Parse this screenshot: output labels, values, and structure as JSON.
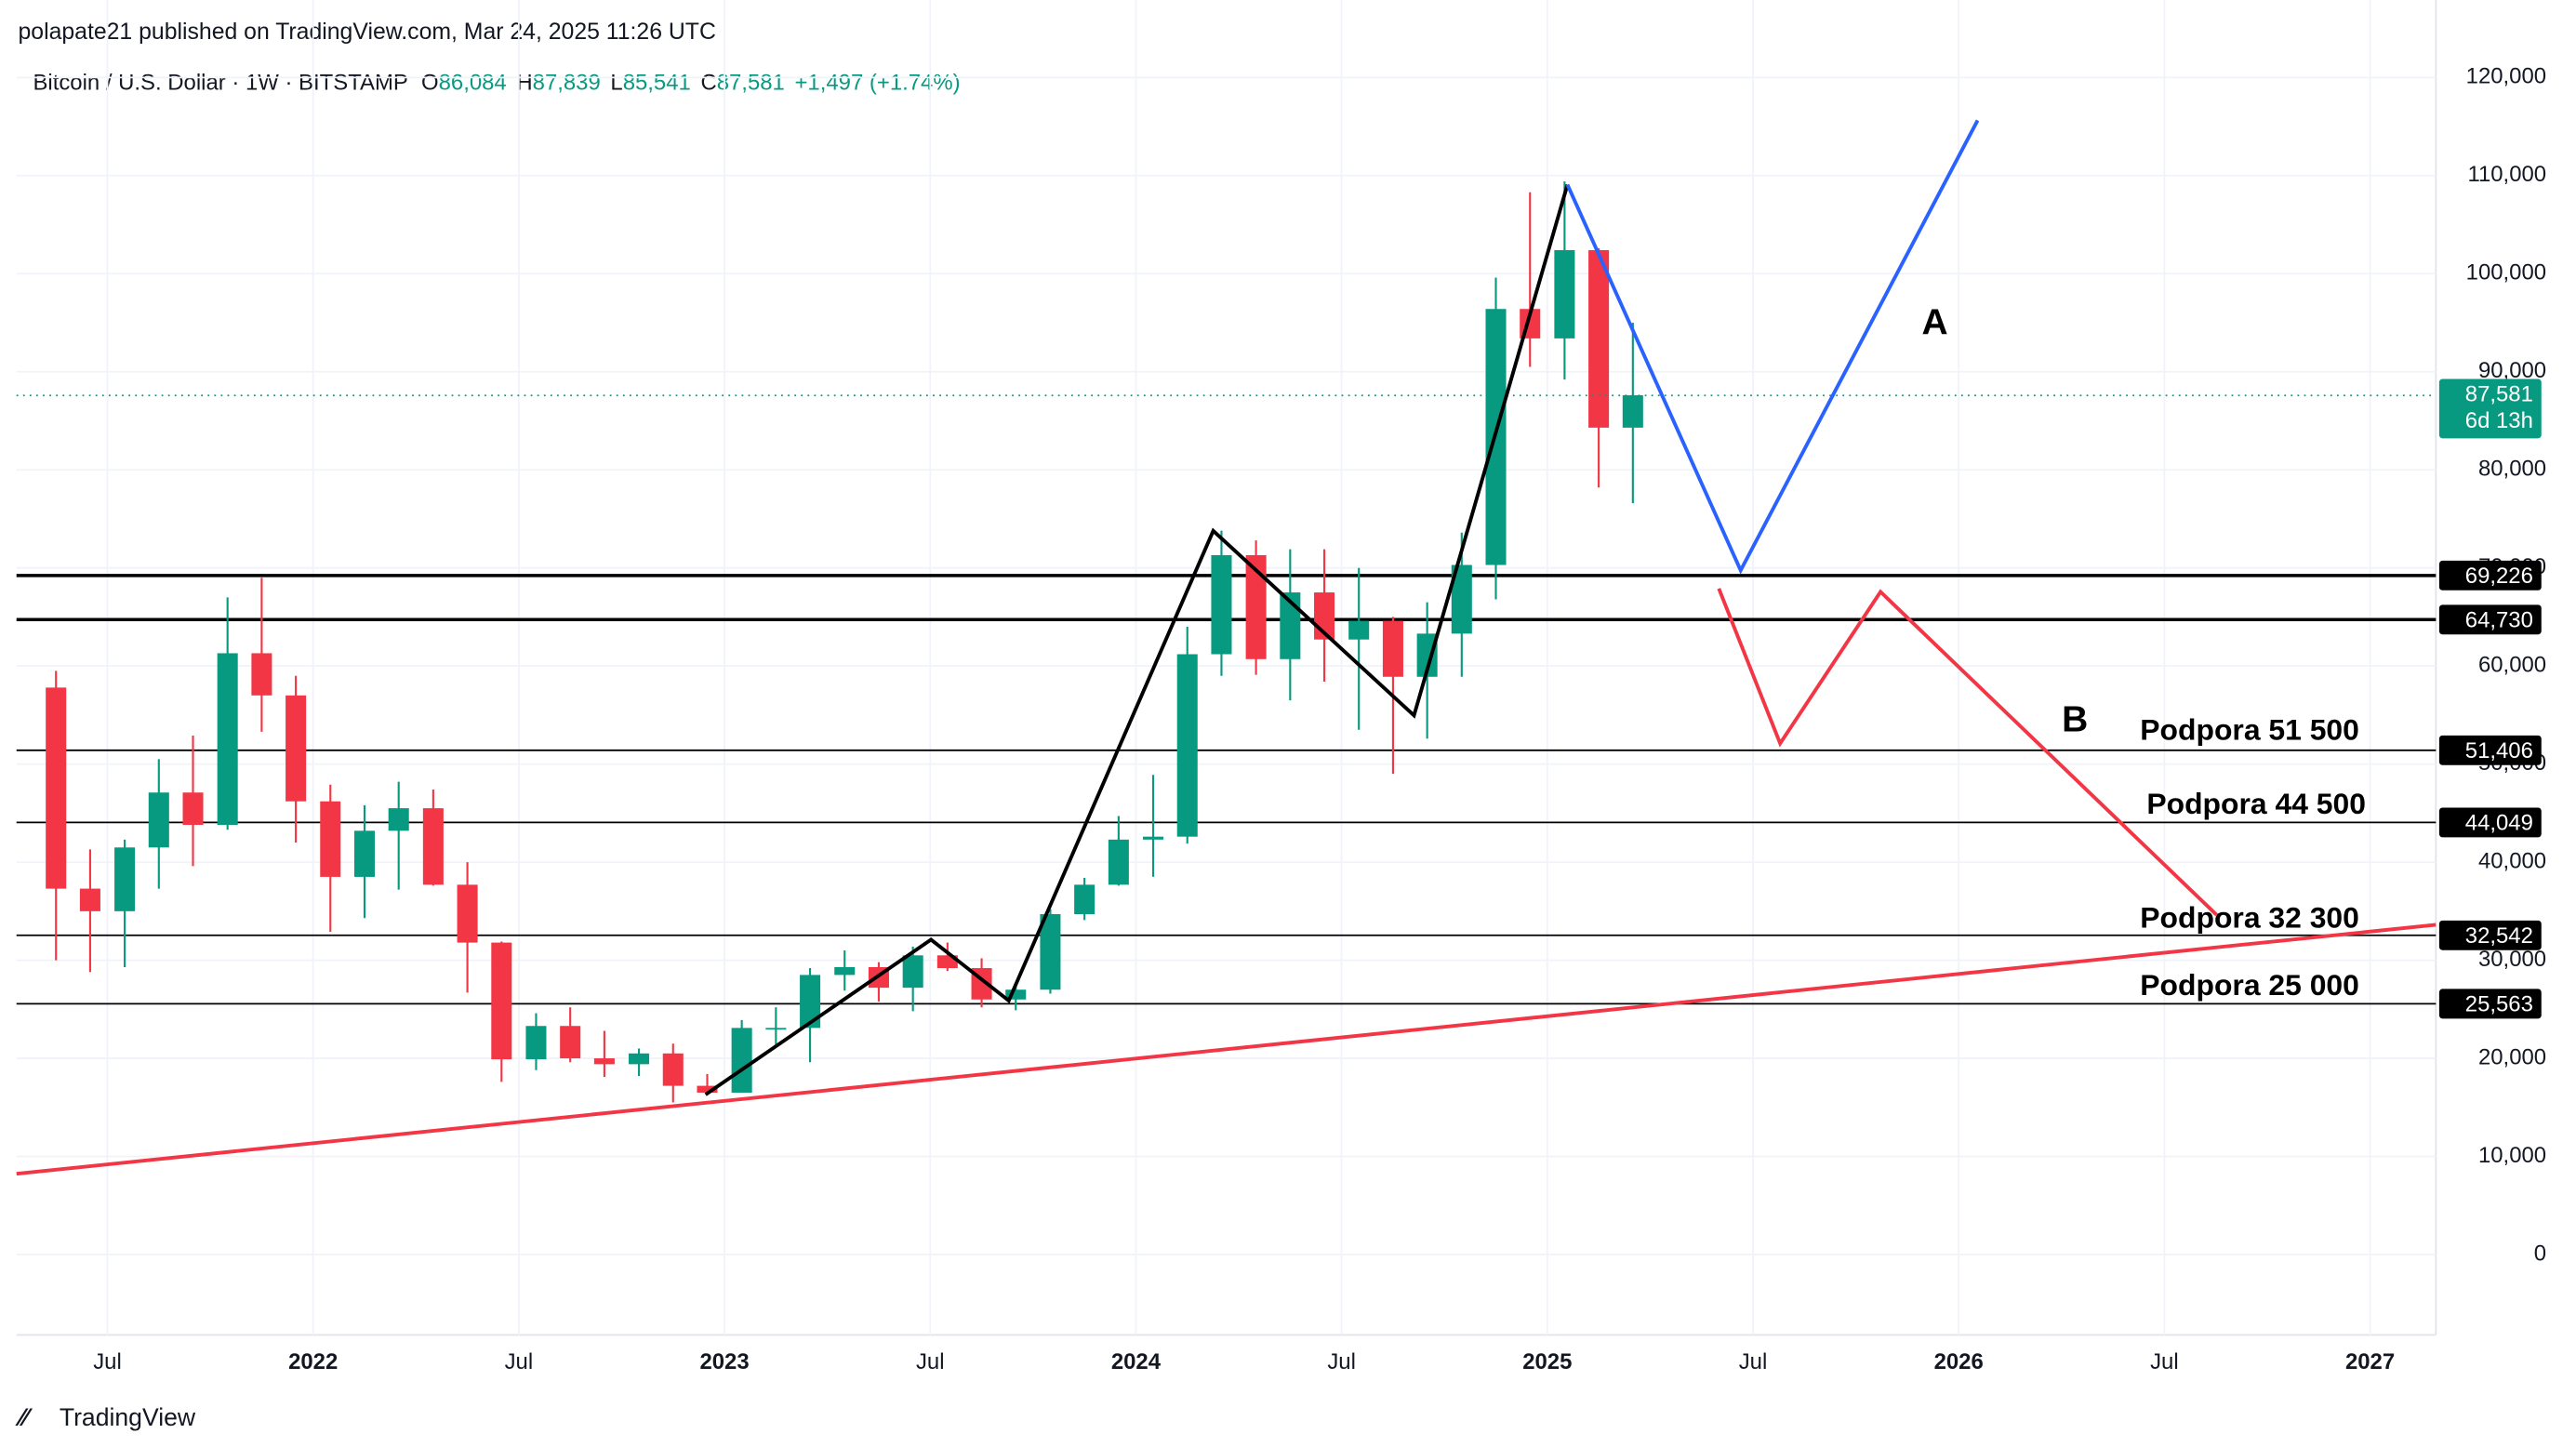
{
  "chart_data": {
    "type": "candlestick",
    "publisher": "polapate21 published on TradingView.com, Mar 24, 2025 11:26 UTC",
    "symbol": "Bitcoin / U.S. Dollar · 1W · BITSTAMP",
    "legend_values": [
      {
        "key": "O",
        "value": "86,084"
      },
      {
        "key": "H",
        "value": "87,839"
      },
      {
        "key": "L",
        "value": "85,541"
      },
      {
        "key": "C",
        "value": "87,581"
      }
    ],
    "change": "+1,497 (+1.74%)",
    "brand": "TradingView",
    "up_color": "#089981",
    "down_color": "#f23645",
    "x": [
      2021.375,
      2021.458,
      2021.542,
      2021.625,
      2021.708,
      2021.792,
      2021.875,
      2021.958,
      2022.042,
      2022.125,
      2022.208,
      2022.292,
      2022.375,
      2022.458,
      2022.542,
      2022.625,
      2022.708,
      2022.792,
      2022.875,
      2022.958,
      2023.042,
      2023.125,
      2023.208,
      2023.292,
      2023.375,
      2023.458,
      2023.542,
      2023.625,
      2023.708,
      2023.792,
      2023.875,
      2023.958,
      2024.042,
      2024.125,
      2024.208,
      2024.292,
      2024.375,
      2024.458,
      2024.542,
      2024.625,
      2024.708,
      2024.792,
      2024.875,
      2024.958,
      2025.042,
      2025.125,
      2025.208
    ],
    "open": [
      57800,
      37300,
      35000,
      41500,
      47100,
      43800,
      61300,
      57000,
      46200,
      38500,
      43200,
      45500,
      37700,
      31800,
      19900,
      23300,
      20000,
      19400,
      20500,
      17200,
      16500,
      23100,
      23100,
      28500,
      29300,
      27200,
      30500,
      29200,
      26000,
      27000,
      34700,
      37700,
      42300,
      42600,
      61200,
      71300,
      60700,
      67500,
      62700,
      64600,
      58900,
      63300,
      70300,
      96400,
      93400,
      102400,
      84300
    ],
    "high": [
      59500,
      41300,
      42300,
      50500,
      52900,
      67000,
      69000,
      59000,
      47900,
      45800,
      48200,
      47400,
      40000,
      31900,
      24600,
      25200,
      22800,
      21000,
      21500,
      18400,
      23900,
      25200,
      29200,
      31000,
      29800,
      31400,
      31800,
      30200,
      27500,
      35200,
      38400,
      44700,
      48900,
      64000,
      73800,
      72800,
      71900,
      71900,
      70000,
      65000,
      66500,
      73600,
      99600,
      108300,
      109400,
      102600,
      95000
    ],
    "low": [
      30000,
      28800,
      29300,
      37300,
      39600,
      43300,
      53300,
      42000,
      32900,
      34300,
      37200,
      37600,
      26700,
      17600,
      18800,
      19600,
      18100,
      18200,
      15500,
      16300,
      16500,
      21400,
      19600,
      26900,
      25800,
      24800,
      28900,
      25200,
      24900,
      26600,
      34100,
      37600,
      38500,
      41900,
      59000,
      59100,
      56500,
      58400,
      53500,
      49000,
      52600,
      58900,
      66800,
      90500,
      89200,
      78200,
      76600
    ],
    "close": [
      37300,
      35000,
      41500,
      47100,
      43800,
      61300,
      57000,
      46200,
      38500,
      43200,
      45500,
      37700,
      31800,
      19900,
      23300,
      20000,
      19400,
      20500,
      17200,
      16500,
      23100,
      23100,
      28500,
      29300,
      27200,
      30500,
      29200,
      26000,
      27000,
      34700,
      37700,
      42300,
      42600,
      61200,
      71300,
      60700,
      67500,
      62700,
      64600,
      58900,
      63300,
      70300,
      96400,
      93400,
      102400,
      84300,
      87600
    ],
    "xlim": [
      2021.279,
      2027.16
    ],
    "xticks": [
      {
        "value": 2021.5,
        "label": "Jul"
      },
      2022,
      {
        "value": 2022.5,
        "label": "Jul"
      },
      2023,
      {
        "value": 2023.5,
        "label": "Jul"
      },
      2024,
      {
        "value": 2024.5,
        "label": "Jul"
      },
      2025,
      {
        "value": 2025.5,
        "label": "Jul"
      },
      2026,
      {
        "value": 2026.5,
        "label": "Jul"
      },
      2027
    ],
    "ylim": [
      -8200,
      127900
    ],
    "yticks": [
      0,
      {
        "value": 10000,
        "label": "10,000"
      },
      {
        "value": 20000,
        "label": "20,000"
      },
      {
        "value": 30000,
        "label": "30,000"
      },
      {
        "value": 40000,
        "label": "40,000"
      },
      {
        "value": 50000,
        "label": "50,000"
      },
      {
        "value": 60000,
        "label": "60,000"
      },
      {
        "value": 70000,
        "label": "70,000"
      },
      {
        "value": 80000,
        "label": "80,000"
      },
      {
        "value": 90000,
        "label": "90,000"
      },
      {
        "value": 100000,
        "label": "100,000"
      },
      {
        "value": 110000,
        "label": "110,000"
      },
      {
        "value": 120000,
        "label": "120,000"
      }
    ],
    "grid": true,
    "last_price": {
      "value": 87581,
      "label": "87,581"
    },
    "countdown": "6d 13h",
    "levels": [
      {
        "value": 69226,
        "label": "69,226",
        "width": 2
      },
      {
        "value": 64730,
        "label": "64,730",
        "width": 2
      },
      {
        "value": 51406,
        "label": "51,406",
        "width": 1
      },
      {
        "value": 44049,
        "label": "44,049",
        "width": 1
      },
      {
        "value": 32542,
        "label": "32,542",
        "width": 1
      },
      {
        "value": 25563,
        "label": "25,563",
        "width": 1
      }
    ],
    "drawings": [
      {
        "color": "#000000",
        "x": [
          2022.954,
          2023.502,
          2023.691,
          2024.188,
          2024.676,
          2025.049
        ],
        "values": [
          16303,
          32101,
          25882,
          73782,
          54958,
          109076
        ]
      },
      {
        "color": "#2962ff",
        "x": [
          2025.049,
          2025.47,
          2026.046
        ],
        "values": [
          109076,
          69748,
          115630
        ]
      },
      {
        "color": "#f23645",
        "x": [
          2025.417,
          2025.566,
          2025.81,
          2026.627
        ],
        "values": [
          67899,
          52101,
          67563,
          34622
        ]
      },
      {
        "color": "#f23645",
        "x": [
          2021.279,
          2027.16
        ],
        "values": [
          8235,
          33613
        ]
      }
    ],
    "annotations": [
      "A",
      "B",
      "Podpora 51 500",
      "Podpora 44 500",
      "Podpora 32 300",
      "Podpora 25 000"
    ]
  }
}
